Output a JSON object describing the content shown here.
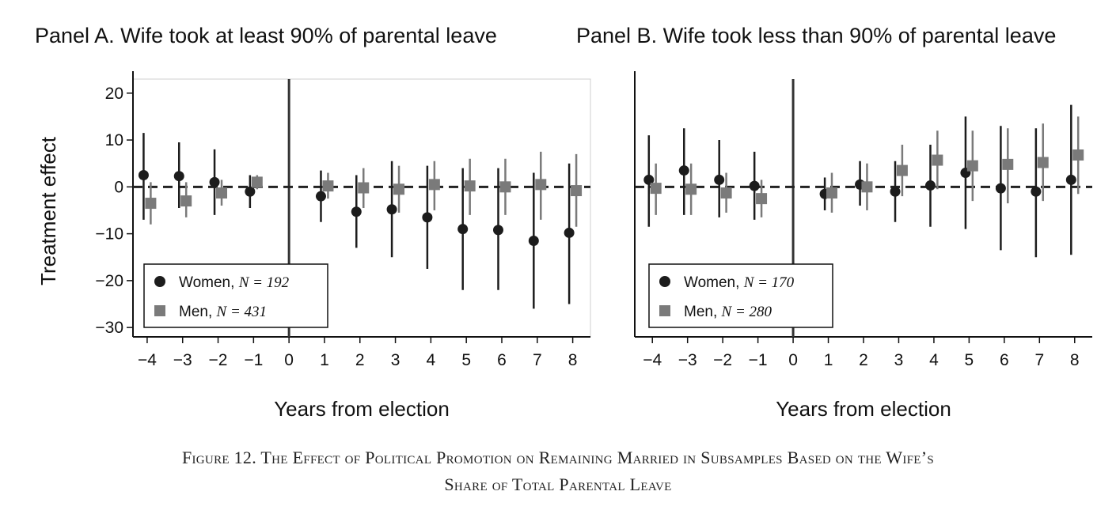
{
  "figure_caption_line1": "Figure 12. The Effect of Political Promotion on Remaining Married in Subsamples Based on the Wife’s",
  "figure_caption_line2": "Share of Total Parental Leave",
  "colors": {
    "women": "#1c1c1c",
    "men": "#7a7a7a",
    "zero_line": "#222222"
  },
  "chart_data": [
    {
      "type": "scatter",
      "title": "Panel A. Wife took at least 90% of parental leave",
      "xlabel": "Years from election",
      "ylabel": "Treatment effect",
      "x_ticks": [
        -4,
        -3,
        -2,
        -1,
        0,
        1,
        2,
        3,
        4,
        5,
        6,
        7,
        8
      ],
      "x_tick_labels": [
        "−4",
        "−3",
        "−2",
        "−1",
        "0",
        "1",
        "2",
        "3",
        "4",
        "5",
        "6",
        "7",
        "8"
      ],
      "y_ticks": [
        20,
        10,
        0,
        -10,
        -20,
        -30
      ],
      "y_tick_labels": [
        "20",
        "10",
        "0",
        "−10",
        "−20",
        "−30"
      ],
      "xlim": [
        -4.4,
        8.5
      ],
      "ylim": [
        -32,
        23
      ],
      "reference_line_y": 0,
      "event_line_x": 0,
      "legend_position": "bottom-left",
      "series": [
        {
          "name": "Women",
          "n_label": "N = 192",
          "marker": "circle",
          "points": [
            {
              "x": -4,
              "y": 2.5,
              "lo": -7,
              "hi": 11.5
            },
            {
              "x": -3,
              "y": 2.3,
              "lo": -4.5,
              "hi": 9.5
            },
            {
              "x": -2,
              "y": 1.0,
              "lo": -6,
              "hi": 8
            },
            {
              "x": -1,
              "y": -1.0,
              "lo": -4.5,
              "hi": 2.5
            },
            {
              "x": 1,
              "y": -2.0,
              "lo": -7.5,
              "hi": 3.5
            },
            {
              "x": 2,
              "y": -5.3,
              "lo": -13,
              "hi": 2.5
            },
            {
              "x": 3,
              "y": -4.8,
              "lo": -15,
              "hi": 5.5
            },
            {
              "x": 4,
              "y": -6.5,
              "lo": -17.5,
              "hi": 4.5
            },
            {
              "x": 5,
              "y": -9.0,
              "lo": -22,
              "hi": 4
            },
            {
              "x": 6,
              "y": -9.2,
              "lo": -22,
              "hi": 4
            },
            {
              "x": 7,
              "y": -11.5,
              "lo": -26,
              "hi": 3
            },
            {
              "x": 8,
              "y": -9.8,
              "lo": -25,
              "hi": 5
            }
          ]
        },
        {
          "name": "Men",
          "n_label": "N = 431",
          "marker": "square",
          "points": [
            {
              "x": -4,
              "y": -3.5,
              "lo": -8,
              "hi": 1
            },
            {
              "x": -3,
              "y": -3.0,
              "lo": -6.5,
              "hi": 1
            },
            {
              "x": -2,
              "y": -1.3,
              "lo": -4,
              "hi": 1.5
            },
            {
              "x": -1,
              "y": 1.0,
              "lo": -0.5,
              "hi": 2.5
            },
            {
              "x": 1,
              "y": 0.2,
              "lo": -2.5,
              "hi": 3
            },
            {
              "x": 2,
              "y": -0.2,
              "lo": -4.5,
              "hi": 4
            },
            {
              "x": 3,
              "y": -0.5,
              "lo": -5.5,
              "hi": 4.5
            },
            {
              "x": 4,
              "y": 0.5,
              "lo": -5,
              "hi": 5.5
            },
            {
              "x": 5,
              "y": 0.2,
              "lo": -6,
              "hi": 6
            },
            {
              "x": 6,
              "y": 0,
              "lo": -6,
              "hi": 6
            },
            {
              "x": 7,
              "y": 0.5,
              "lo": -7,
              "hi": 7.5
            },
            {
              "x": 8,
              "y": -0.8,
              "lo": -8.5,
              "hi": 7
            }
          ]
        }
      ]
    },
    {
      "type": "scatter",
      "title": "Panel B. Wife took less than 90% of parental leave",
      "xlabel": "Years from election",
      "ylabel": "",
      "x_ticks": [
        -4,
        -3,
        -2,
        -1,
        0,
        1,
        2,
        3,
        4,
        5,
        6,
        7,
        8
      ],
      "x_tick_labels": [
        "−4",
        "−3",
        "−2",
        "−1",
        "0",
        "1",
        "2",
        "3",
        "4",
        "5",
        "6",
        "7",
        "8"
      ],
      "y_ticks": [],
      "y_tick_labels": [],
      "xlim": [
        -4.5,
        8.5
      ],
      "ylim": [
        -32,
        23
      ],
      "reference_line_y": 0,
      "event_line_x": 0,
      "legend_position": "bottom-left",
      "series": [
        {
          "name": "Women",
          "n_label": "N = 170",
          "marker": "circle",
          "points": [
            {
              "x": -4,
              "y": 1.5,
              "lo": -8.5,
              "hi": 11
            },
            {
              "x": -3,
              "y": 3.5,
              "lo": -6,
              "hi": 12.5
            },
            {
              "x": -2,
              "y": 1.5,
              "lo": -6.5,
              "hi": 10
            },
            {
              "x": -1,
              "y": 0.2,
              "lo": -7,
              "hi": 7.5
            },
            {
              "x": 1,
              "y": -1.5,
              "lo": -5,
              "hi": 2
            },
            {
              "x": 2,
              "y": 0.5,
              "lo": -4,
              "hi": 5.5
            },
            {
              "x": 3,
              "y": -1.0,
              "lo": -7.5,
              "hi": 5.5
            },
            {
              "x": 4,
              "y": 0.3,
              "lo": -8.5,
              "hi": 9
            },
            {
              "x": 5,
              "y": 3.0,
              "lo": -9,
              "hi": 15
            },
            {
              "x": 6,
              "y": -0.3,
              "lo": -13.5,
              "hi": 13
            },
            {
              "x": 7,
              "y": -1.0,
              "lo": -15,
              "hi": 12.5
            },
            {
              "x": 8,
              "y": 1.5,
              "lo": -14.5,
              "hi": 17.5
            }
          ]
        },
        {
          "name": "Men",
          "n_label": "N = 280",
          "marker": "square",
          "points": [
            {
              "x": -4,
              "y": -0.3,
              "lo": -6,
              "hi": 5
            },
            {
              "x": -3,
              "y": -0.5,
              "lo": -6,
              "hi": 5
            },
            {
              "x": -2,
              "y": -1.3,
              "lo": -5.5,
              "hi": 3
            },
            {
              "x": -1,
              "y": -2.5,
              "lo": -6.5,
              "hi": 1.5
            },
            {
              "x": 1,
              "y": -1.3,
              "lo": -5.5,
              "hi": 3
            },
            {
              "x": 2,
              "y": 0,
              "lo": -5,
              "hi": 5
            },
            {
              "x": 3,
              "y": 3.5,
              "lo": -2,
              "hi": 9
            },
            {
              "x": 4,
              "y": 5.7,
              "lo": -0.5,
              "hi": 12
            },
            {
              "x": 5,
              "y": 4.5,
              "lo": -3,
              "hi": 12
            },
            {
              "x": 6,
              "y": 4.8,
              "lo": -3.5,
              "hi": 12.5
            },
            {
              "x": 7,
              "y": 5.2,
              "lo": -3,
              "hi": 13.5
            },
            {
              "x": 8,
              "y": 6.8,
              "lo": -1.5,
              "hi": 15
            }
          ]
        }
      ]
    }
  ]
}
